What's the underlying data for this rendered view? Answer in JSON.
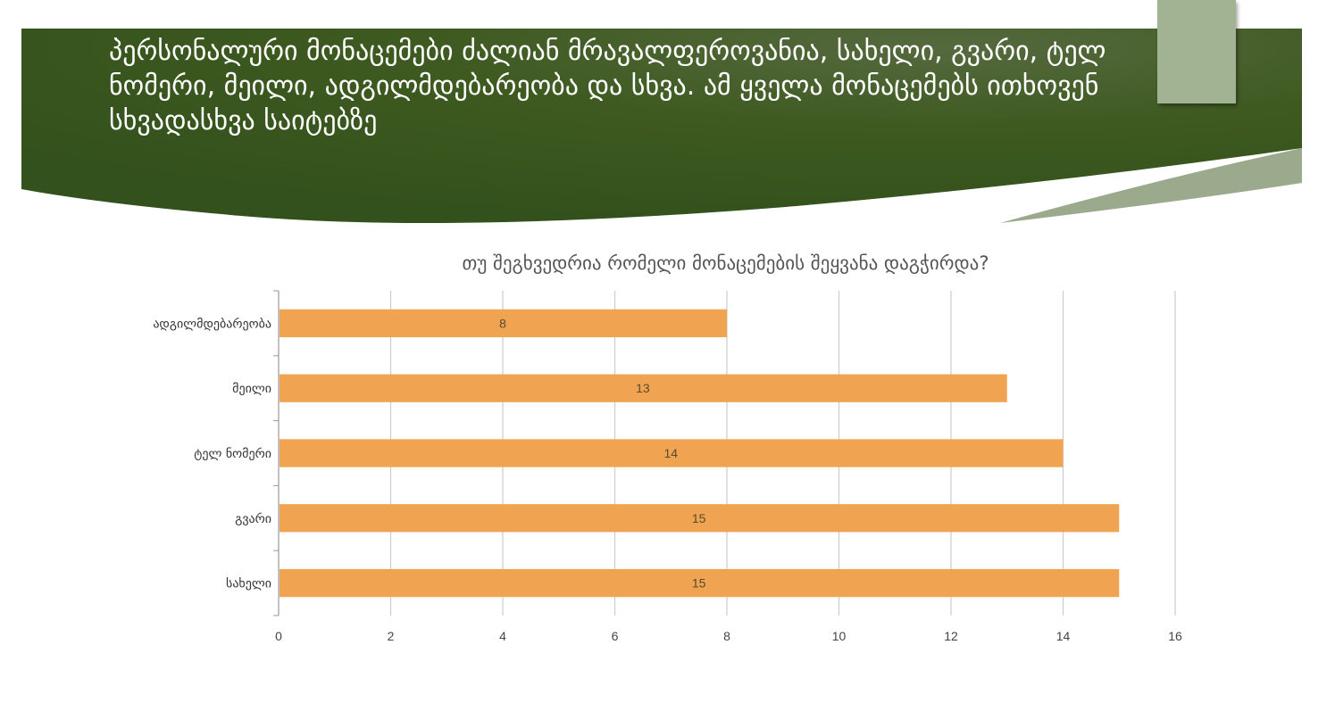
{
  "slide": {
    "title": "პერსონალური მონაცემები ძალიან მრავალფეროვანია, სახელი, გვარი, ტელ ნომერი, მეილი, ადგილმდებარეობა და სხვა. ამ ყველა მონაცემებს ითხოვენ სხვადასხვა საიტებზე",
    "banner_color": "#3d5a1f",
    "tab_color": "#a2b393"
  },
  "chart_data": {
    "type": "bar",
    "orientation": "horizontal",
    "title": "თუ შეგხვედრია რომელი მონაცემების შეყვანა დაგჭირდა?",
    "categories": [
      "ადგილმდებარეობა",
      "მეილი",
      "ტელ ნომერი",
      "გვარი",
      "სახელი"
    ],
    "values": [
      8,
      13,
      14,
      15,
      15
    ],
    "xlim": [
      0,
      16
    ],
    "xticks": [
      "0",
      "2",
      "4",
      "6",
      "8",
      "10",
      "12",
      "14",
      "16"
    ],
    "grid": true,
    "legend": "none",
    "bar_color": "#f0a452"
  }
}
